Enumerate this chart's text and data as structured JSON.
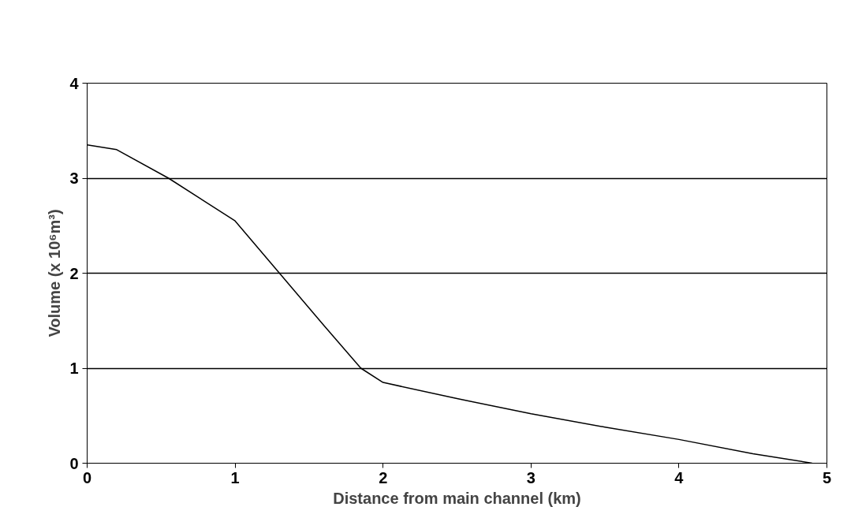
{
  "chart_data": {
    "type": "line",
    "xlabel": "Distance from main channel (km)",
    "ylabel": "Volume (x 10⁶m³)",
    "x": [
      0,
      0.2,
      0.55,
      1.0,
      1.3,
      1.6,
      1.85,
      2.0,
      2.5,
      3.0,
      3.5,
      4.0,
      4.5,
      4.9
    ],
    "series": [
      {
        "color": "#000000",
        "values": [
          3.35,
          3.3,
          3.0,
          2.55,
          2.0,
          1.45,
          1.0,
          0.85,
          0.68,
          0.52,
          0.38,
          0.25,
          0.1,
          0.0
        ]
      }
    ],
    "xlim": [
      0,
      5
    ],
    "ylim": [
      0,
      4
    ],
    "xticks": [
      0,
      1,
      2,
      3,
      4,
      5
    ],
    "yticks": [
      0,
      1,
      2,
      3,
      4
    ],
    "grid": "y",
    "marker": "none",
    "line_style": "solid"
  }
}
